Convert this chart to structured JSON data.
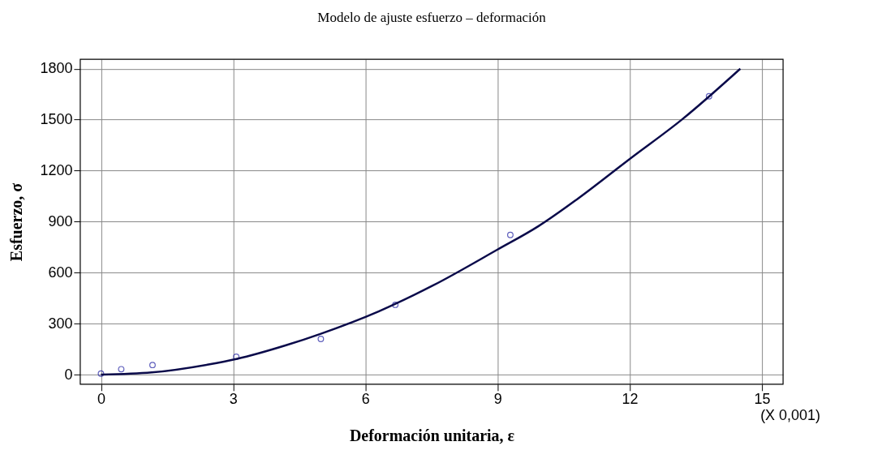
{
  "chart_data": {
    "type": "scatter",
    "title": "Modelo de ajuste esfuerzo – deformación",
    "xlabel": "Deformación unitaria,  ε",
    "ylabel": "Esfuerzo,  σ",
    "annotations": [
      "(X 0,001)"
    ],
    "series": [
      {
        "type": "scatter",
        "color": "#1a1aa0",
        "marker": "circle",
        "x": [
          0,
          0.46,
          1.17,
          3.07,
          4.99,
          6.68,
          9.29,
          13.8
        ],
        "values": [
          6,
          32,
          57,
          105,
          210,
          411,
          822,
          1638
        ]
      },
      {
        "type": "line",
        "color": "#0a0a4a",
        "marker": "none",
        "line_style": "solid",
        "x": [
          0,
          1.15,
          2.44,
          3.07,
          4.2,
          4.99,
          6.3,
          7.53,
          9.0,
          9.93,
          10.8,
          12.02,
          13.18,
          14.51
        ],
        "values": [
          0,
          13,
          60,
          92,
          173,
          241,
          372,
          524,
          736,
          874,
          1031,
          1273,
          1500,
          1800
        ]
      }
    ],
    "xlim": [
      -0.47,
      15.48
    ],
    "xticks": [
      0,
      3,
      6,
      9,
      12,
      15
    ],
    "ylim": [
      -56,
      1855
    ],
    "yticks": [
      0,
      300,
      600,
      900,
      1200,
      1500,
      1800
    ],
    "grid": true
  }
}
